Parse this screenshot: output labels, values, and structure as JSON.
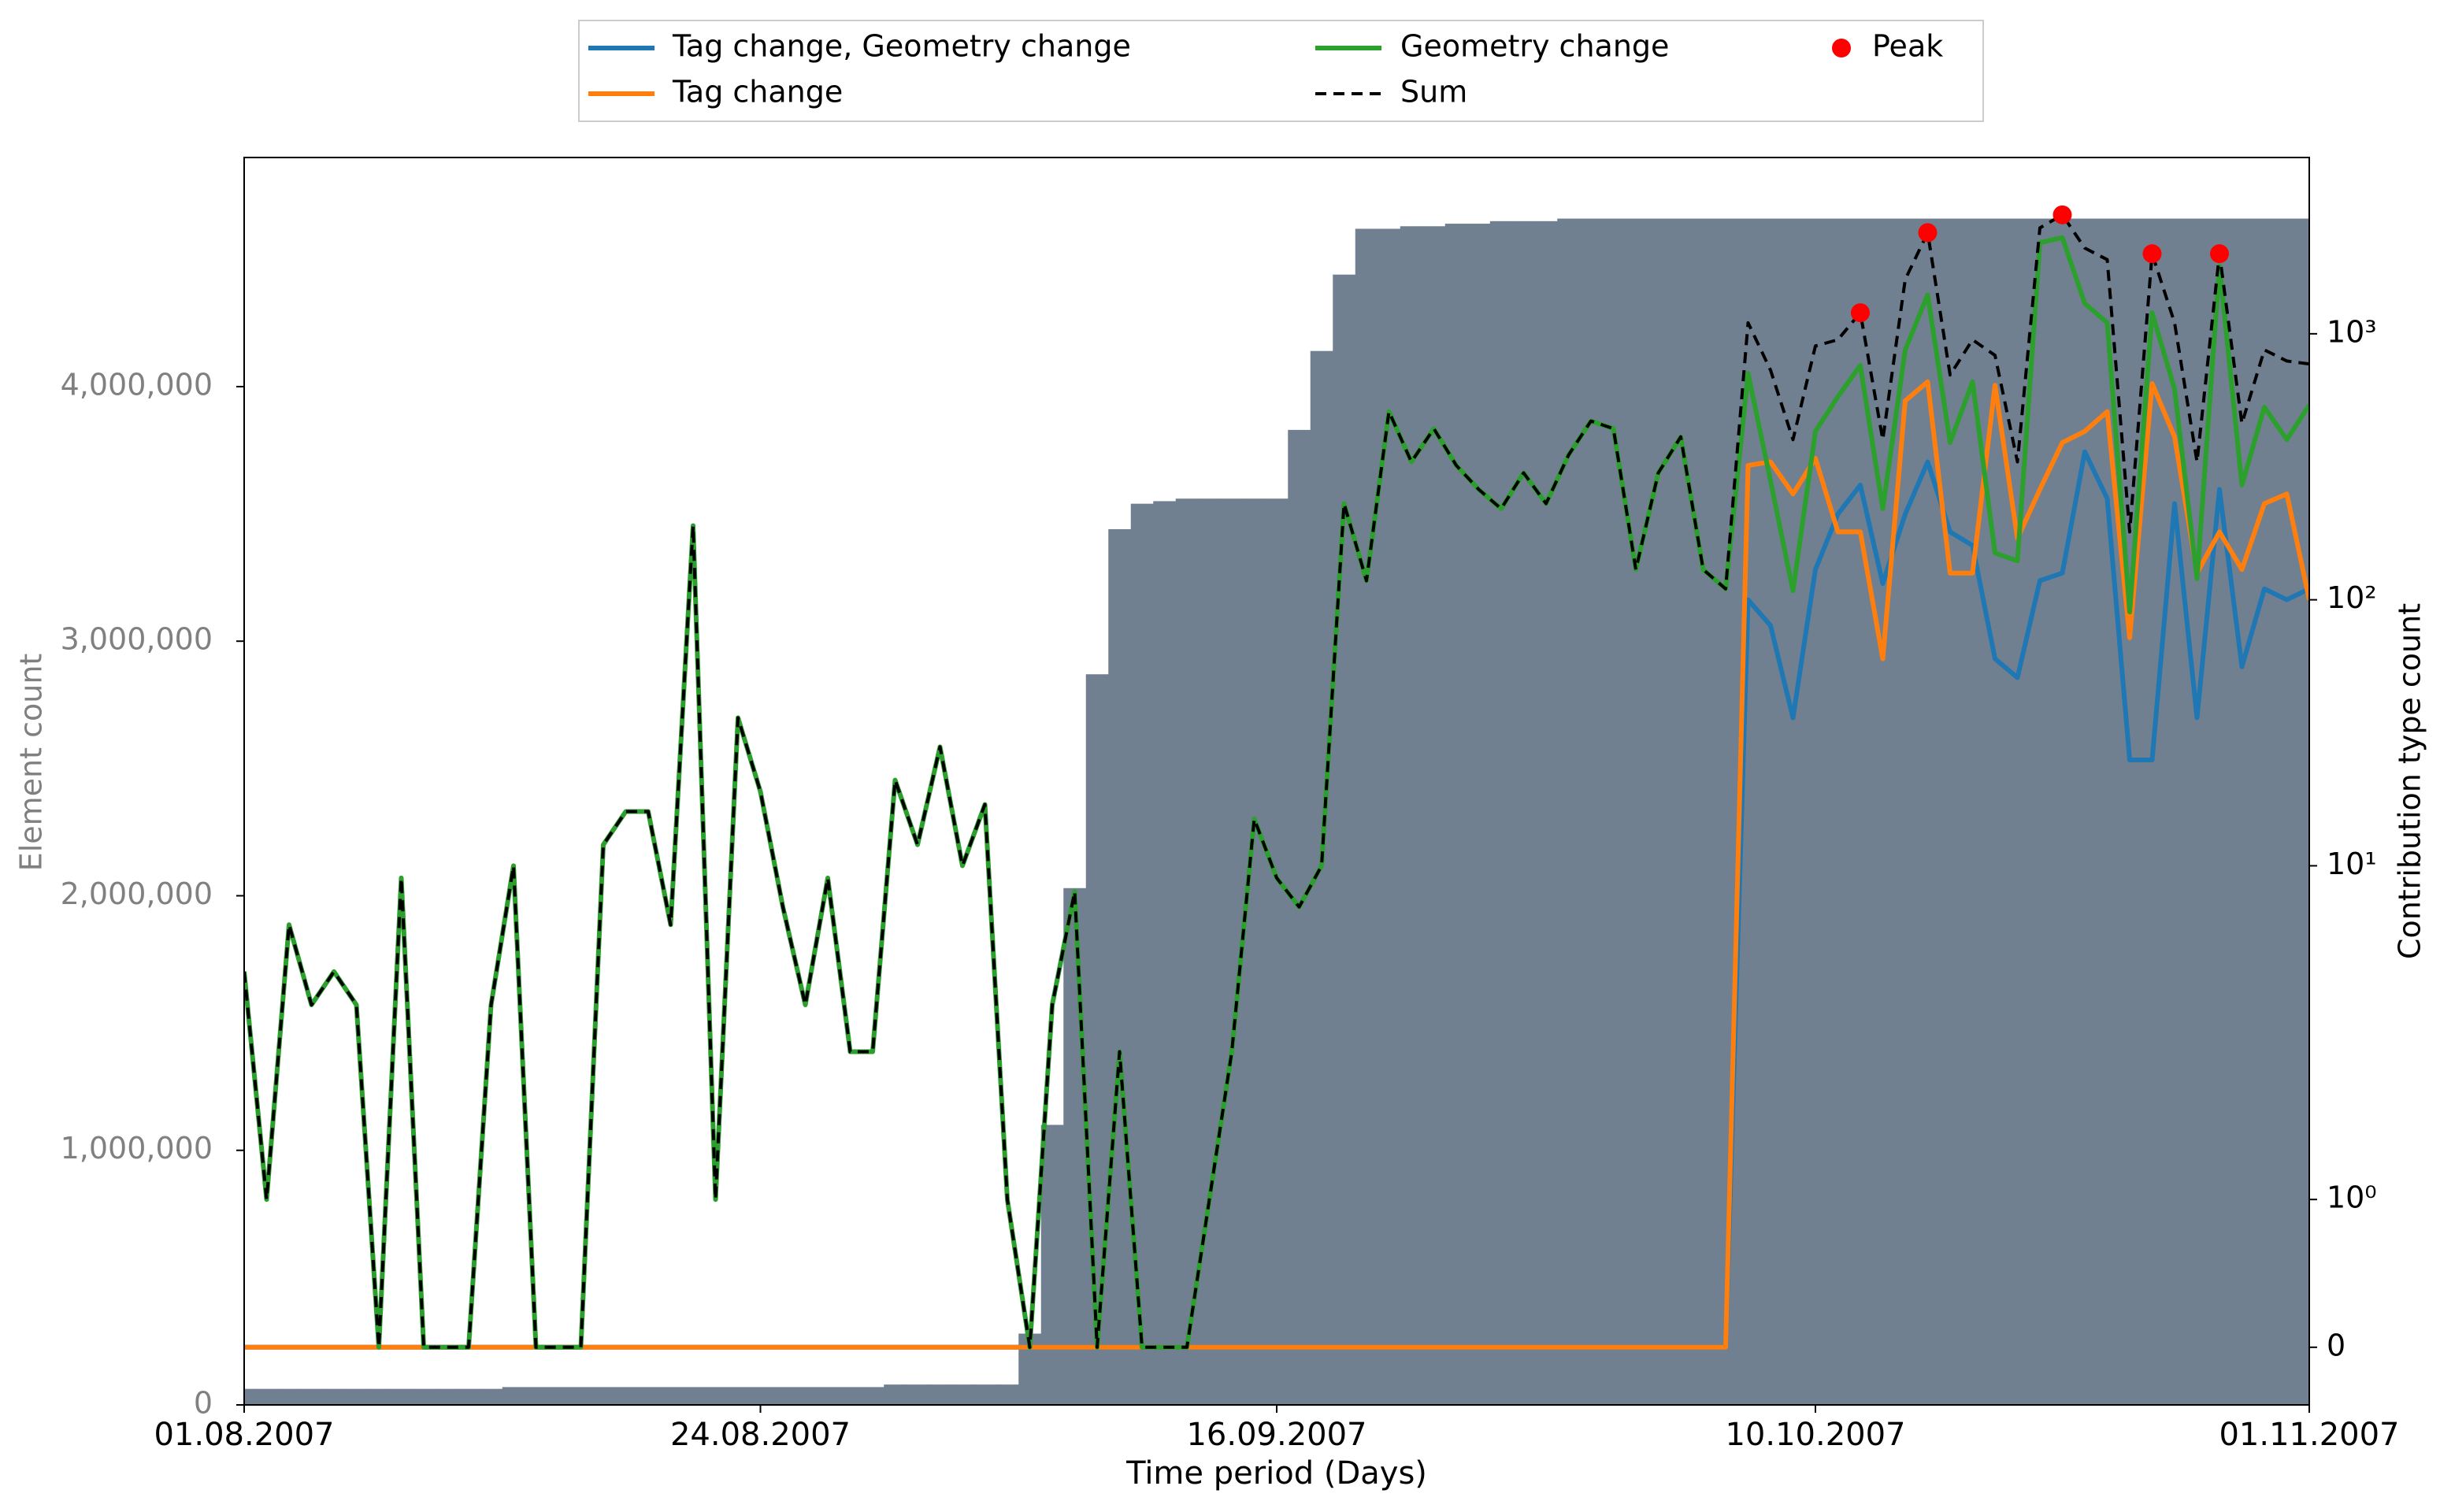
{
  "chart_data": {
    "type": "line",
    "xlabel": "Time period (Days)",
    "ylabel": "Element count",
    "y2label": "Contribution type count",
    "x": [
      "2007-08-01",
      "2007-08-02",
      "2007-08-03",
      "2007-08-04",
      "2007-08-05",
      "2007-08-06",
      "2007-08-07",
      "2007-08-08",
      "2007-08-09",
      "2007-08-10",
      "2007-08-11",
      "2007-08-12",
      "2007-08-13",
      "2007-08-14",
      "2007-08-15",
      "2007-08-16",
      "2007-08-17",
      "2007-08-18",
      "2007-08-19",
      "2007-08-20",
      "2007-08-21",
      "2007-08-22",
      "2007-08-23",
      "2007-08-24",
      "2007-08-25",
      "2007-08-26",
      "2007-08-27",
      "2007-08-28",
      "2007-08-29",
      "2007-08-30",
      "2007-08-31",
      "2007-09-01",
      "2007-09-02",
      "2007-09-03",
      "2007-09-04",
      "2007-09-05",
      "2007-09-06",
      "2007-09-07",
      "2007-09-08",
      "2007-09-09",
      "2007-09-10",
      "2007-09-11",
      "2007-09-12",
      "2007-09-13",
      "2007-09-14",
      "2007-09-15",
      "2007-09-16",
      "2007-09-17",
      "2007-09-18",
      "2007-09-19",
      "2007-09-20",
      "2007-09-21",
      "2007-09-22",
      "2007-09-23",
      "2007-09-24",
      "2007-09-25",
      "2007-09-26",
      "2007-09-27",
      "2007-09-28",
      "2007-09-29",
      "2007-09-30",
      "2007-10-01",
      "2007-10-02",
      "2007-10-03",
      "2007-10-04",
      "2007-10-05",
      "2007-10-06",
      "2007-10-07",
      "2007-10-08",
      "2007-10-09",
      "2007-10-10",
      "2007-10-11",
      "2007-10-12",
      "2007-10-13",
      "2007-10-14",
      "2007-10-15",
      "2007-10-16",
      "2007-10-17",
      "2007-10-18",
      "2007-10-19",
      "2007-10-20",
      "2007-10-21",
      "2007-10-22",
      "2007-10-23",
      "2007-10-24",
      "2007-10-25",
      "2007-10-26",
      "2007-10-27",
      "2007-10-28",
      "2007-10-29",
      "2007-10-30",
      "2007-10-31",
      "2007-11-01"
    ],
    "xlim": [
      "2007-08-01",
      "2007-11-01"
    ],
    "xticks": [
      {
        "value": "2007-08-01",
        "label": "01.08.2007"
      },
      {
        "value": "2007-08-24",
        "label": "24.08.2007"
      },
      {
        "value": "2007-09-16",
        "label": "16.09.2007"
      },
      {
        "value": "2007-10-10",
        "label": "10.10.2007"
      },
      {
        "value": "2007-11-01",
        "label": "01.11.2007"
      }
    ],
    "ylim": [
      0,
      4900000
    ],
    "yticks": [
      0,
      {
        "value": 1000000,
        "label": "1,000,000"
      },
      {
        "value": 2000000,
        "label": "2,000,000"
      },
      {
        "value": 3000000,
        "label": "3,000,000"
      },
      {
        "value": 4000000,
        "label": "4,000,000"
      }
    ],
    "y2lim": [
      -0.39,
      4600
    ],
    "y2scale": "symlog",
    "y2linthresh": 2,
    "y2ticks": [
      0,
      {
        "value": 1,
        "label": "10⁰"
      },
      {
        "value": 10,
        "label": "10¹"
      },
      {
        "value": 100,
        "label": "10²"
      },
      {
        "value": 1000,
        "label": "10³"
      }
    ],
    "legend": "upper center",
    "legend_columns": 3,
    "area": {
      "color": "#708090",
      "values": [
        63000,
        63000,
        63000,
        63000,
        63000,
        63000,
        63000,
        63000,
        63000,
        63000,
        63000,
        63000,
        70000,
        70000,
        70000,
        70000,
        70000,
        70000,
        70000,
        70000,
        70000,
        70000,
        70000,
        70000,
        70000,
        70000,
        70000,
        70000,
        70000,
        80000,
        80000,
        80000,
        80000,
        80000,
        80000,
        280000,
        1100000,
        2030000,
        2870000,
        3440000,
        3540000,
        3550000,
        3560000,
        3560000,
        3560000,
        3560000,
        3560000,
        3830000,
        4140000,
        4440000,
        4620000,
        4620000,
        4630000,
        4630000,
        4640000,
        4640000,
        4650000,
        4650000,
        4650000,
        4660000,
        4660000,
        4660000,
        4660000,
        4660000,
        4660000,
        4660000,
        4660000,
        4660000,
        4660000,
        4660000,
        4660000,
        4660000,
        4660000,
        4660000,
        4660000,
        4660000,
        4660000,
        4660000,
        4660000,
        4660000,
        4660000,
        4660000,
        4660000,
        4660000,
        4660000,
        4660000,
        4660000,
        4660000,
        4660000,
        4660000,
        4660000,
        4660000,
        4660000
      ]
    },
    "series": [
      {
        "name": "Tag change, Geometry change",
        "color": "#1f77b4",
        "axis": "y2",
        "values": [
          0,
          0,
          0,
          0,
          0,
          0,
          0,
          0,
          0,
          0,
          0,
          0,
          0,
          0,
          0,
          0,
          0,
          0,
          0,
          0,
          0,
          0,
          0,
          0,
          0,
          0,
          0,
          0,
          0,
          0,
          0,
          0,
          0,
          0,
          0,
          0,
          0,
          0,
          0,
          0,
          0,
          0,
          0,
          0,
          0,
          0,
          0,
          0,
          0,
          0,
          0,
          0,
          0,
          0,
          0,
          0,
          0,
          0,
          0,
          0,
          0,
          0,
          0,
          0,
          0,
          0,
          0,
          100,
          80,
          36,
          130,
          210,
          270,
          115,
          210,
          330,
          180,
          160,
          60,
          51,
          118,
          126,
          360,
          240,
          25,
          25,
          230,
          36,
          260,
          56,
          110,
          100,
          110
        ]
      },
      {
        "name": "Tag change",
        "color": "#ff7f0e",
        "axis": "y2",
        "values": [
          0,
          0,
          0,
          0,
          0,
          0,
          0,
          0,
          0,
          0,
          0,
          0,
          0,
          0,
          0,
          0,
          0,
          0,
          0,
          0,
          0,
          0,
          0,
          0,
          0,
          0,
          0,
          0,
          0,
          0,
          0,
          0,
          0,
          0,
          0,
          0,
          0,
          0,
          0,
          0,
          0,
          0,
          0,
          0,
          0,
          0,
          0,
          0,
          0,
          0,
          0,
          0,
          0,
          0,
          0,
          0,
          0,
          0,
          0,
          0,
          0,
          0,
          0,
          0,
          0,
          0,
          0,
          320,
          330,
          250,
          340,
          180,
          180,
          60,
          560,
          660,
          126,
          126,
          640,
          170,
          260,
          390,
          430,
          510,
          72,
          650,
          410,
          126,
          180,
          130,
          230,
          250,
          100
        ]
      },
      {
        "name": "Geometry change",
        "color": "#2ca02c",
        "axis": "y2",
        "values": [
          4,
          1,
          6,
          3,
          4,
          3,
          0,
          9,
          0,
          0,
          0,
          3,
          10,
          0,
          0,
          0,
          12,
          16,
          16,
          6,
          190,
          1,
          36,
          19,
          7,
          3,
          9,
          2,
          2,
          21,
          12,
          28,
          10,
          17,
          1,
          0,
          3,
          8,
          0,
          2,
          0,
          0,
          0,
          1,
          2,
          15,
          9,
          7,
          10,
          230,
          118,
          510,
          330,
          440,
          320,
          260,
          220,
          300,
          230,
          350,
          470,
          440,
          130,
          300,
          410,
          130,
          110,
          710,
          280,
          108,
          430,
          580,
          760,
          220,
          870,
          1400,
          390,
          660,
          150,
          140,
          2200,
          2300,
          1300,
          1100,
          90,
          1200,
          620,
          120,
          1800,
          270,
          530,
          400,
          540
        ]
      },
      {
        "name": "Sum",
        "color": "#000000",
        "axis": "y2",
        "dash": true,
        "values": [
          4,
          1,
          6,
          3,
          4,
          3,
          0,
          9,
          0,
          0,
          0,
          3,
          10,
          0,
          0,
          0,
          12,
          16,
          16,
          6,
          190,
          1,
          36,
          19,
          7,
          3,
          9,
          2,
          2,
          21,
          12,
          28,
          10,
          17,
          1,
          0,
          3,
          8,
          0,
          2,
          0,
          0,
          0,
          1,
          2,
          15,
          9,
          7,
          10,
          230,
          118,
          510,
          330,
          440,
          320,
          260,
          220,
          300,
          230,
          350,
          470,
          440,
          130,
          300,
          410,
          130,
          110,
          1100,
          730,
          400,
          900,
          950,
          1200,
          400,
          1600,
          2400,
          700,
          950,
          830,
          330,
          2500,
          2800,
          2100,
          1900,
          180,
          2000,
          1100,
          330,
          2000,
          460,
          870,
          790,
          770
        ]
      },
      {
        "name": "Peak",
        "color": "#ff0000",
        "axis": "y2",
        "marker": "o",
        "x": [
          "2007-10-12",
          "2007-10-15",
          "2007-10-21",
          "2007-10-25",
          "2007-10-28"
        ],
        "values": [
          1200,
          2400,
          2800,
          2000,
          2000
        ]
      }
    ]
  }
}
